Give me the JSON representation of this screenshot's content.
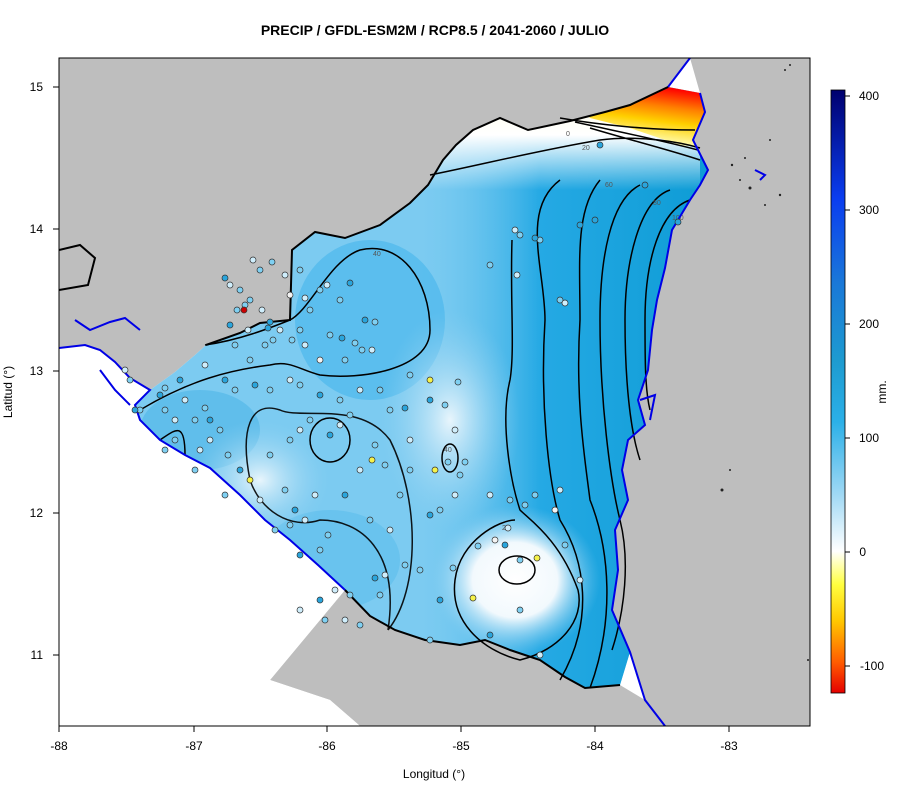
{
  "title": "PRECIP / GFDL-ESM2M / RCP8.5 / 2041-2060 / JULIO",
  "xlabel": "Longitud (°)",
  "ylabel": "Latitud (°)",
  "x_ticks": [
    "-88",
    "-87",
    "-86",
    "-85",
    "-84",
    "-83"
  ],
  "y_ticks": [
    "15",
    "14",
    "13",
    "12",
    "11"
  ],
  "colorbar": {
    "unit_label": "mm.",
    "ticks": [
      "400",
      "300",
      "200",
      "100",
      "0",
      "-100"
    ],
    "range": [
      -120,
      400
    ],
    "colors": [
      "#e50000",
      "#ff8c00",
      "#ffff00",
      "#ffffff",
      "#a8dcf5",
      "#3fb6ea",
      "#009acd",
      "#0055e0",
      "#00007a"
    ]
  },
  "contour_labels": [
    "0",
    "20",
    "40",
    "60",
    "80",
    "100",
    "20",
    "40"
  ],
  "colors": {
    "land_outside": "#bebebe",
    "coastline": "#0000e6",
    "border": "#000000",
    "contour": "#000000",
    "station_outline": "#333333"
  }
}
